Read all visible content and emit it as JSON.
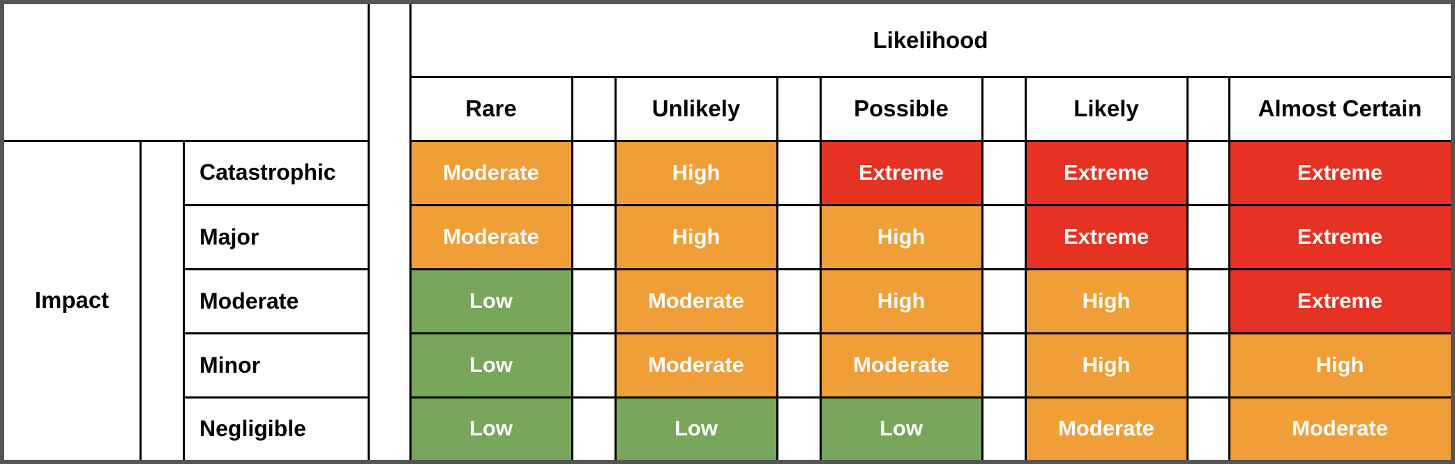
{
  "likelihood_title": "Likelihood",
  "impact_title": "Impact",
  "likelihood_levels": [
    "Rare",
    "Unlikely",
    "Possible",
    "Likely",
    "Almost Certain"
  ],
  "impact_levels": [
    "Catastrophic",
    "Major",
    "Moderate",
    "Minor",
    "Negligible"
  ],
  "matrix": [
    [
      "Moderate",
      "High",
      "Extreme",
      "Extreme",
      "Extreme"
    ],
    [
      "Moderate",
      "High",
      "High",
      "Extreme",
      "Extreme"
    ],
    [
      "Low",
      "Moderate",
      "High",
      "High",
      "Extreme"
    ],
    [
      "Low",
      "Moderate",
      "Moderate",
      "High",
      "High"
    ],
    [
      "Low",
      "Low",
      "Low",
      "Moderate",
      "Moderate"
    ]
  ],
  "colors": {
    "Low": "#78a65a",
    "Moderate": "#f09e38",
    "High": "#f09e38",
    "Extreme": "#e53223"
  }
}
